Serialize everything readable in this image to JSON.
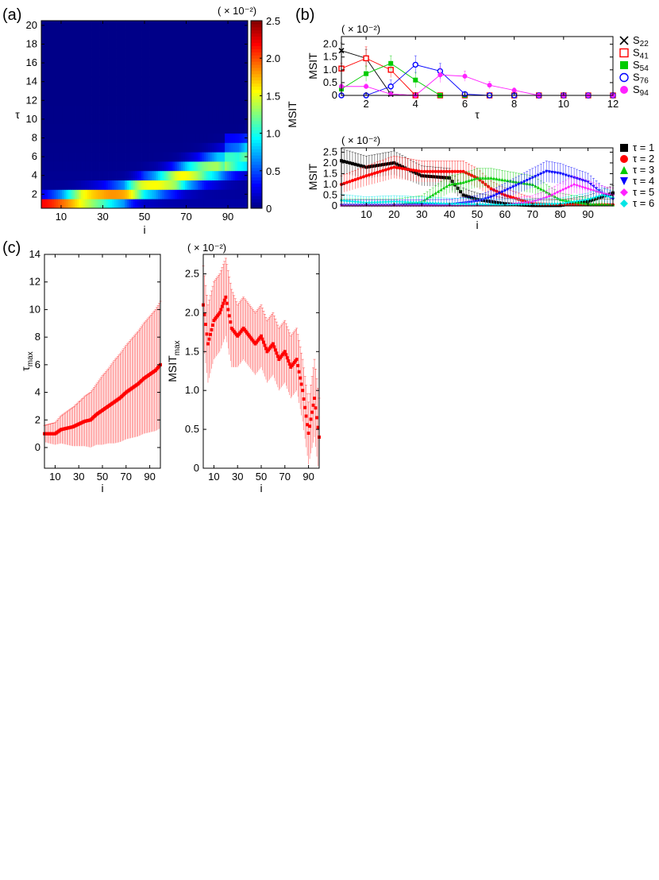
{
  "panel_labels": {
    "a": "(a)",
    "b": "(b)",
    "c": "(c)"
  },
  "chart_data": [
    {
      "id": "a",
      "type": "heatmap",
      "xlabel": "i",
      "ylabel": "τ",
      "xticks": [
        10,
        30,
        50,
        70,
        90
      ],
      "yticks": [
        2,
        4,
        6,
        8,
        10,
        12,
        14,
        16,
        18,
        20
      ],
      "xlim": [
        1,
        99
      ],
      "ylim": [
        1,
        20
      ],
      "colorbar": {
        "label": "MSIT",
        "scale": "( × 10⁻²)",
        "ticks": [
          0,
          0.5,
          1.0,
          1.5,
          2.0,
          2.5
        ],
        "tick_labels": [
          "0",
          "0.5",
          "1.0",
          "1.5",
          "2.0",
          "2.5"
        ],
        "range": [
          0,
          2.5
        ],
        "colormap": "jet"
      },
      "ridge": {
        "i": [
          1,
          10,
          20,
          30,
          40,
          45,
          50,
          55,
          60,
          65,
          70,
          75,
          80,
          85,
          90,
          95,
          99
        ],
        "tau": [
          1.0,
          1.2,
          1.5,
          1.7,
          2.0,
          2.4,
          2.8,
          3.0,
          3.3,
          3.6,
          4.0,
          4.3,
          4.7,
          5.0,
          5.3,
          5.6,
          6.0
        ],
        "msit": [
          2.1,
          2.0,
          2.1,
          1.9,
          1.7,
          1.6,
          1.5,
          1.5,
          1.5,
          1.6,
          1.5,
          1.4,
          1.3,
          1.3,
          1.0,
          0.8,
          0.9
        ]
      }
    },
    {
      "id": "b-top",
      "type": "line",
      "xlabel": "τ",
      "ylabel": "MSIT",
      "scale": "( × 10⁻²)",
      "xticks": [
        2,
        4,
        6,
        8,
        10,
        12
      ],
      "yticks": [
        0,
        0.5,
        1.0,
        1.5,
        2.0
      ],
      "ytick_labels": [
        "0",
        "0.5",
        "1.0",
        "1.5",
        "2.0"
      ],
      "xlim": [
        1,
        12
      ],
      "ylim": [
        0,
        2.3
      ],
      "series": [
        {
          "name": "S22",
          "sub": "22",
          "color": "#000000",
          "marker": "x",
          "x": [
            1,
            2,
            3,
            4,
            5,
            6,
            7,
            8,
            9,
            10,
            11,
            12
          ],
          "y": [
            1.75,
            1.45,
            0.05,
            0,
            0,
            0,
            0,
            0,
            0,
            0,
            0,
            0
          ],
          "err": [
            0.3,
            0.35,
            0.1,
            0.03,
            0.02,
            0.02,
            0.02,
            0.02,
            0.02,
            0.02,
            0.02,
            0.02
          ]
        },
        {
          "name": "S41",
          "sub": "41",
          "color": "#ff0000",
          "marker": "open-square",
          "x": [
            1,
            2,
            3,
            4,
            5,
            6,
            7,
            8,
            9,
            10,
            11,
            12
          ],
          "y": [
            1.05,
            1.45,
            1.0,
            0,
            0,
            0,
            0,
            0,
            0,
            0,
            0,
            0
          ],
          "err": [
            0.2,
            0.45,
            0.3,
            0.05,
            0.02,
            0.02,
            0.02,
            0.02,
            0.02,
            0.02,
            0.02,
            0.02
          ]
        },
        {
          "name": "S54",
          "sub": "54",
          "color": "#00cc00",
          "marker": "filled-square",
          "x": [
            1,
            2,
            3,
            4,
            5,
            6,
            7,
            8,
            9,
            10,
            11,
            12
          ],
          "y": [
            0.25,
            0.85,
            1.25,
            0.6,
            0,
            0,
            0,
            0,
            0,
            0,
            0,
            0
          ],
          "err": [
            0.1,
            0.3,
            0.3,
            0.3,
            0.05,
            0.02,
            0.02,
            0.02,
            0.02,
            0.02,
            0.02,
            0.02
          ]
        },
        {
          "name": "S76",
          "sub": "76",
          "color": "#0000ff",
          "marker": "open-circle",
          "x": [
            1,
            2,
            3,
            4,
            5,
            6,
            7,
            8,
            9,
            10,
            11,
            12
          ],
          "y": [
            0,
            0,
            0.35,
            1.2,
            0.95,
            0.05,
            0,
            0,
            0,
            0,
            0,
            0
          ],
          "err": [
            0.02,
            0.05,
            0.25,
            0.35,
            0.3,
            0.1,
            0.02,
            0.02,
            0.02,
            0.02,
            0.02,
            0.02
          ]
        },
        {
          "name": "S94",
          "sub": "94",
          "color": "#ff22ff",
          "marker": "filled-circle",
          "x": [
            1,
            2,
            3,
            4,
            5,
            6,
            7,
            8,
            9,
            10,
            11,
            12
          ],
          "y": [
            0.35,
            0.35,
            0.05,
            0,
            0.8,
            0.75,
            0.4,
            0.2,
            0,
            0,
            0,
            0
          ],
          "err": [
            0.1,
            0.1,
            0.05,
            0.03,
            0.3,
            0.2,
            0.15,
            0.1,
            0.03,
            0.02,
            0.02,
            0.02
          ]
        }
      ]
    },
    {
      "id": "b-bottom",
      "type": "line",
      "xlabel": "i",
      "ylabel": "MSIT",
      "scale": "( × 10⁻²)",
      "xticks": [
        10,
        20,
        30,
        40,
        50,
        60,
        70,
        80,
        90
      ],
      "yticks": [
        0,
        0.5,
        1.0,
        1.5,
        2.0,
        2.5
      ],
      "ytick_labels": [
        "0",
        "0.5",
        "1.0",
        "1.5",
        "2.0",
        "2.5"
      ],
      "xlim": [
        1,
        99
      ],
      "ylim": [
        0,
        2.7
      ],
      "series": [
        {
          "name": "τ = 1",
          "color": "#000000",
          "marker": "filled-square",
          "x": [
            1,
            10,
            20,
            30,
            40,
            45,
            50,
            55,
            60,
            65,
            70,
            80,
            90,
            99
          ],
          "y": [
            2.1,
            1.8,
            2.0,
            1.4,
            1.3,
            0.5,
            0.3,
            0.2,
            0.1,
            0.05,
            0.02,
            0.02,
            0.2,
            0.6
          ]
        },
        {
          "name": "τ = 2",
          "color": "#ff0000",
          "marker": "filled-circle",
          "x": [
            1,
            10,
            20,
            30,
            40,
            45,
            50,
            55,
            60,
            65,
            70,
            80,
            90,
            99
          ],
          "y": [
            1.0,
            1.4,
            1.8,
            1.6,
            1.6,
            1.6,
            1.3,
            0.8,
            0.5,
            0.3,
            0.1,
            0.05,
            0.05,
            0.05
          ]
        },
        {
          "name": "τ = 3",
          "color": "#00cc00",
          "marker": "filled-triangle-up",
          "x": [
            1,
            10,
            20,
            30,
            35,
            40,
            45,
            50,
            55,
            60,
            65,
            70,
            80,
            90,
            99
          ],
          "y": [
            0.05,
            0.05,
            0.05,
            0.2,
            0.6,
            1.0,
            1.1,
            1.3,
            1.3,
            1.2,
            1.1,
            1.0,
            0.3,
            0.1,
            0.05
          ]
        },
        {
          "name": "τ = 4",
          "color": "#0000ff",
          "marker": "filled-triangle-down",
          "x": [
            1,
            20,
            40,
            50,
            55,
            60,
            65,
            70,
            75,
            80,
            85,
            90,
            95,
            99
          ],
          "y": [
            0.02,
            0.02,
            0.05,
            0.2,
            0.4,
            0.7,
            1.0,
            1.3,
            1.6,
            1.5,
            1.3,
            1.1,
            0.6,
            0.3
          ]
        },
        {
          "name": "τ = 5",
          "color": "#ff22ff",
          "marker": "filled-diamond",
          "x": [
            1,
            20,
            40,
            60,
            70,
            75,
            80,
            85,
            90,
            95,
            99
          ],
          "y": [
            0.02,
            0.02,
            0.02,
            0.05,
            0.2,
            0.4,
            0.7,
            1.0,
            0.8,
            0.6,
            0.5
          ]
        },
        {
          "name": "τ = 6",
          "color": "#00e5e5",
          "marker": "filled-diamond",
          "x": [
            1,
            10,
            20,
            40,
            60,
            80,
            90,
            95,
            99
          ],
          "y": [
            0.25,
            0.15,
            0.2,
            0.1,
            0.05,
            0.1,
            0.3,
            0.5,
            0.4
          ]
        }
      ]
    },
    {
      "id": "c-left",
      "type": "scatter",
      "xlabel": "i",
      "ylabel": "τ",
      "ylabel_sub": "max",
      "xticks": [
        10,
        30,
        50,
        70,
        90
      ],
      "yticks": [
        0,
        2,
        4,
        6,
        8,
        10,
        12,
        14
      ],
      "xlim": [
        1,
        99
      ],
      "ylim": [
        -1.5,
        14
      ],
      "color": "#ff0000",
      "x": [
        1,
        5,
        10,
        15,
        20,
        25,
        30,
        35,
        40,
        45,
        50,
        55,
        60,
        65,
        70,
        75,
        80,
        85,
        90,
        95,
        99
      ],
      "y": [
        1.0,
        1.0,
        1.0,
        1.3,
        1.4,
        1.5,
        1.7,
        1.9,
        2.0,
        2.4,
        2.7,
        3.0,
        3.3,
        3.6,
        4.0,
        4.3,
        4.6,
        5.0,
        5.3,
        5.6,
        6.0
      ],
      "err": [
        0.6,
        0.7,
        0.8,
        1.0,
        1.2,
        1.4,
        1.6,
        1.8,
        2.0,
        2.2,
        2.5,
        2.7,
        3.0,
        3.2,
        3.4,
        3.6,
        3.8,
        4.0,
        4.2,
        4.4,
        4.6
      ]
    },
    {
      "id": "c-right",
      "type": "scatter",
      "xlabel": "i",
      "ylabel": "MSIT",
      "ylabel_sub": "max",
      "scale": "( × 10⁻²)",
      "xticks": [
        10,
        30,
        50,
        70,
        90
      ],
      "yticks": [
        0,
        0.5,
        1.0,
        1.5,
        2.0,
        2.5
      ],
      "ytick_labels": [
        "0",
        "0.5",
        "1.0",
        "1.5",
        "2.0",
        "2.5"
      ],
      "xlim": [
        1,
        99
      ],
      "ylim": [
        0,
        2.75
      ],
      "color": "#ff0000",
      "x": [
        1,
        5,
        10,
        15,
        20,
        25,
        30,
        35,
        40,
        45,
        50,
        55,
        60,
        65,
        70,
        75,
        80,
        85,
        90,
        95,
        99
      ],
      "y": [
        2.1,
        1.6,
        1.9,
        2.0,
        2.2,
        1.8,
        1.7,
        1.8,
        1.7,
        1.6,
        1.7,
        1.5,
        1.6,
        1.4,
        1.5,
        1.3,
        1.4,
        1.0,
        0.45,
        0.9,
        0.4
      ],
      "err": [
        0.5,
        0.5,
        0.5,
        0.5,
        0.5,
        0.5,
        0.4,
        0.4,
        0.4,
        0.4,
        0.4,
        0.4,
        0.4,
        0.4,
        0.4,
        0.4,
        0.4,
        0.4,
        0.4,
        0.5,
        0.5
      ]
    }
  ]
}
